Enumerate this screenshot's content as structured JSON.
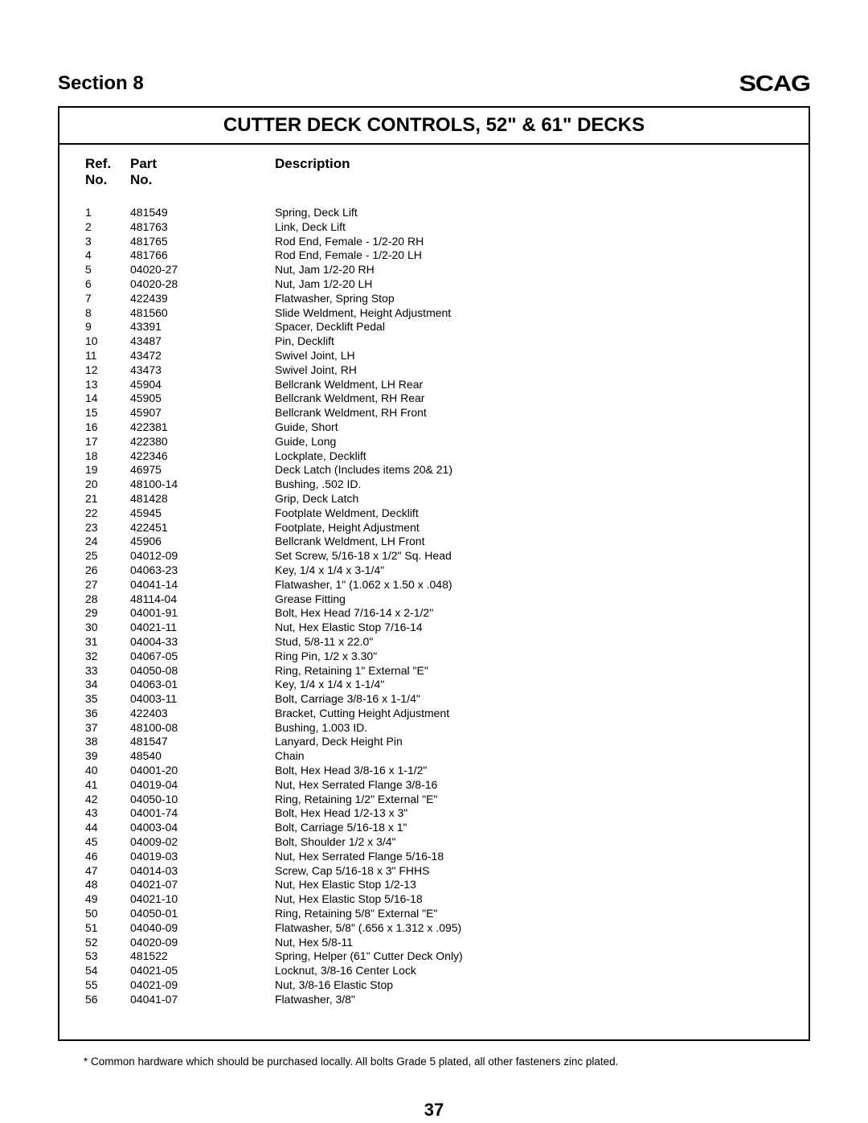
{
  "header": {
    "section_label": "Section 8",
    "logo_text": "SCAG"
  },
  "title": "CUTTER DECK CONTROLS, 52\" & 61\" DECKS",
  "columns": {
    "ref_line1": "Ref.",
    "ref_line2": "No.",
    "part_line1": "Part",
    "part_line2": "No.",
    "desc_line1": "",
    "desc_line2": "Description"
  },
  "parts": [
    {
      "ref": "1",
      "part": "481549",
      "desc": "Spring, Deck Lift"
    },
    {
      "ref": "2",
      "part": "481763",
      "desc": "Link, Deck Lift"
    },
    {
      "ref": "3",
      "part": "481765",
      "desc": "Rod End, Female - 1/2-20 RH"
    },
    {
      "ref": "4",
      "part": "481766",
      "desc": "Rod End, Female - 1/2-20 LH"
    },
    {
      "ref": "5",
      "part": "04020-27",
      "desc": "Nut, Jam 1/2-20 RH"
    },
    {
      "ref": "6",
      "part": "04020-28",
      "desc": "Nut, Jam 1/2-20 LH"
    },
    {
      "ref": "7",
      "part": "422439",
      "desc": "Flatwasher, Spring Stop"
    },
    {
      "ref": "8",
      "part": "481560",
      "desc": "Slide Weldment, Height Adjustment"
    },
    {
      "ref": "9",
      "part": "43391",
      "desc": "Spacer, Decklift Pedal"
    },
    {
      "ref": "10",
      "part": "43487",
      "desc": "Pin, Decklift"
    },
    {
      "ref": "11",
      "part": "43472",
      "desc": "Swivel Joint, LH"
    },
    {
      "ref": "12",
      "part": "43473",
      "desc": "Swivel Joint, RH"
    },
    {
      "ref": "13",
      "part": "45904",
      "desc": "Bellcrank Weldment, LH Rear"
    },
    {
      "ref": "14",
      "part": "45905",
      "desc": "Bellcrank Weldment, RH Rear"
    },
    {
      "ref": "15",
      "part": "45907",
      "desc": "Bellcrank Weldment, RH Front"
    },
    {
      "ref": "16",
      "part": "422381",
      "desc": "Guide, Short"
    },
    {
      "ref": "17",
      "part": "422380",
      "desc": "Guide, Long"
    },
    {
      "ref": "18",
      "part": "422346",
      "desc": "Lockplate, Decklift"
    },
    {
      "ref": "19",
      "part": "46975",
      "desc": "Deck Latch (Includes items 20& 21)"
    },
    {
      "ref": "20",
      "part": "48100-14",
      "desc": "Bushing, .502 ID."
    },
    {
      "ref": "21",
      "part": "481428",
      "desc": "Grip, Deck Latch"
    },
    {
      "ref": "22",
      "part": "45945",
      "desc": "Footplate Weldment, Decklift"
    },
    {
      "ref": "23",
      "part": "422451",
      "desc": "Footplate, Height Adjustment"
    },
    {
      "ref": "24",
      "part": "45906",
      "desc": "Bellcrank Weldment, LH Front"
    },
    {
      "ref": "25",
      "part": "04012-09",
      "desc": "Set Screw, 5/16-18 x 1/2\" Sq. Head"
    },
    {
      "ref": "26",
      "part": "04063-23",
      "desc": "Key, 1/4 x 1/4 x 3-1/4\""
    },
    {
      "ref": "27",
      "part": "04041-14",
      "desc": "Flatwasher, 1\" (1.062 x 1.50 x .048)"
    },
    {
      "ref": "28",
      "part": "48114-04",
      "desc": "Grease Fitting"
    },
    {
      "ref": "29",
      "part": "04001-91",
      "desc": "Bolt, Hex Head 7/16-14 x 2-1/2\""
    },
    {
      "ref": "30",
      "part": "04021-11",
      "desc": "Nut, Hex Elastic Stop 7/16-14"
    },
    {
      "ref": "31",
      "part": "04004-33",
      "desc": "Stud, 5/8-11 x 22.0\""
    },
    {
      "ref": "32",
      "part": "04067-05",
      "desc": "Ring Pin, 1/2 x 3.30\""
    },
    {
      "ref": "33",
      "part": "04050-08",
      "desc": "Ring, Retaining 1\" External \"E\""
    },
    {
      "ref": "34",
      "part": "04063-01",
      "desc": "Key, 1/4 x 1/4 x 1-1/4\""
    },
    {
      "ref": "35",
      "part": "04003-11",
      "desc": "Bolt, Carriage 3/8-16 x 1-1/4\""
    },
    {
      "ref": "36",
      "part": "422403",
      "desc": "Bracket, Cutting Height Adjustment"
    },
    {
      "ref": "37",
      "part": "48100-08",
      "desc": "Bushing, 1.003 ID."
    },
    {
      "ref": "38",
      "part": "481547",
      "desc": "Lanyard, Deck Height Pin"
    },
    {
      "ref": "39",
      "part": "48540",
      "desc": "Chain"
    },
    {
      "ref": "40",
      "part": "04001-20",
      "desc": "Bolt, Hex Head 3/8-16 x 1-1/2\""
    },
    {
      "ref": "41",
      "part": "04019-04",
      "desc": "Nut, Hex Serrated Flange 3/8-16"
    },
    {
      "ref": "42",
      "part": "04050-10",
      "desc": "Ring, Retaining 1/2\" External \"E\""
    },
    {
      "ref": "43",
      "part": "04001-74",
      "desc": "Bolt, Hex Head 1/2-13 x 3\""
    },
    {
      "ref": "44",
      "part": "04003-04",
      "desc": "Bolt, Carriage 5/16-18 x 1\""
    },
    {
      "ref": "45",
      "part": "04009-02",
      "desc": "Bolt, Shoulder 1/2 x 3/4\""
    },
    {
      "ref": "46",
      "part": "04019-03",
      "desc": "Nut, Hex Serrated Flange 5/16-18"
    },
    {
      "ref": "47",
      "part": "04014-03",
      "desc": "Screw, Cap 5/16-18 x 3\" FHHS"
    },
    {
      "ref": "48",
      "part": "04021-07",
      "desc": "Nut, Hex Elastic Stop 1/2-13"
    },
    {
      "ref": "49",
      "part": "04021-10",
      "desc": "Nut, Hex Elastic Stop 5/16-18"
    },
    {
      "ref": "50",
      "part": "04050-01",
      "desc": "Ring, Retaining 5/8\" External \"E\""
    },
    {
      "ref": "51",
      "part": "04040-09",
      "desc": "Flatwasher, 5/8\" (.656 x 1.312 x .095)"
    },
    {
      "ref": "52",
      "part": "04020-09",
      "desc": "Nut, Hex 5/8-11"
    },
    {
      "ref": "53",
      "part": "481522",
      "desc": "Spring, Helper (61\" Cutter Deck Only)"
    },
    {
      "ref": "54",
      "part": "04021-05",
      "desc": "Locknut, 3/8-16 Center Lock"
    },
    {
      "ref": "55",
      "part": "04021-09",
      "desc": "Nut, 3/8-16 Elastic Stop"
    },
    {
      "ref": "56",
      "part": "04041-07",
      "desc": "Flatwasher, 3/8\""
    }
  ],
  "footnote": "* Common hardware which should be purchased locally.  All bolts Grade 5 plated, all other fasteners zinc plated.",
  "page_number": "37"
}
